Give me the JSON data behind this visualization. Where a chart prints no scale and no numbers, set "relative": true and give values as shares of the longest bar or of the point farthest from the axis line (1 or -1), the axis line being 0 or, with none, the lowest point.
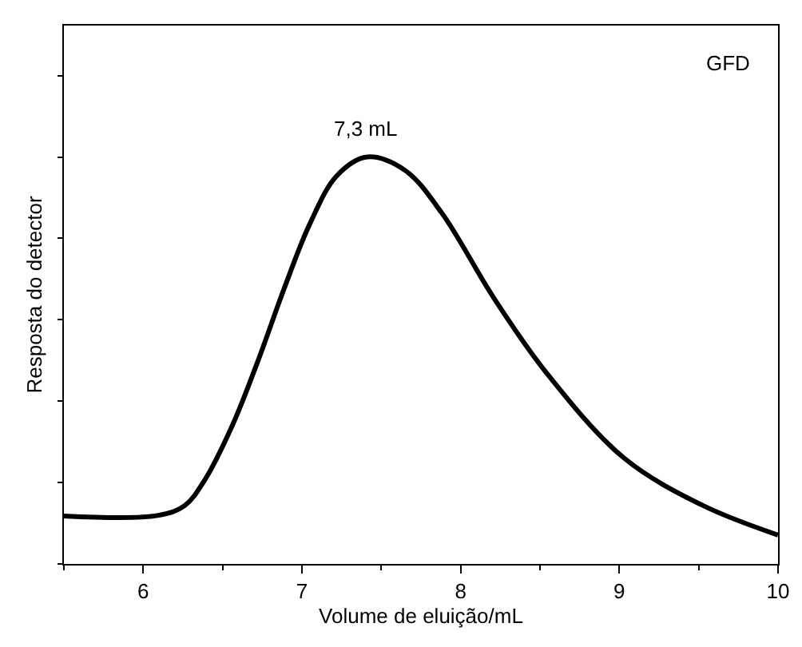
{
  "chart_data": {
    "type": "line",
    "relative": true,
    "xlabel": "Volume de eluição/mL",
    "ylabel": "Resposta do detector",
    "xlim": [
      5.5,
      10
    ],
    "xticks": [
      6,
      7,
      8,
      9,
      10
    ],
    "marker": "none",
    "line_style": "solid",
    "annotations": [
      "GFD",
      {
        "text": "7,3 mL",
        "x": 7.4,
        "y": 1.0
      }
    ],
    "series": [
      {
        "color": "#000000",
        "x": [
          5.5,
          6.09,
          6.26,
          6.39,
          6.56,
          6.72,
          6.89,
          7.05,
          7.22,
          7.41,
          7.65,
          7.88,
          8.21,
          8.54,
          9.03,
          9.53,
          10.0
        ],
        "values": [
          0.118,
          0.119,
          0.143,
          0.208,
          0.339,
          0.496,
          0.679,
          0.836,
          0.954,
          1.0,
          0.967,
          0.863,
          0.653,
          0.47,
          0.26,
          0.143,
          0.071
        ]
      }
    ]
  }
}
